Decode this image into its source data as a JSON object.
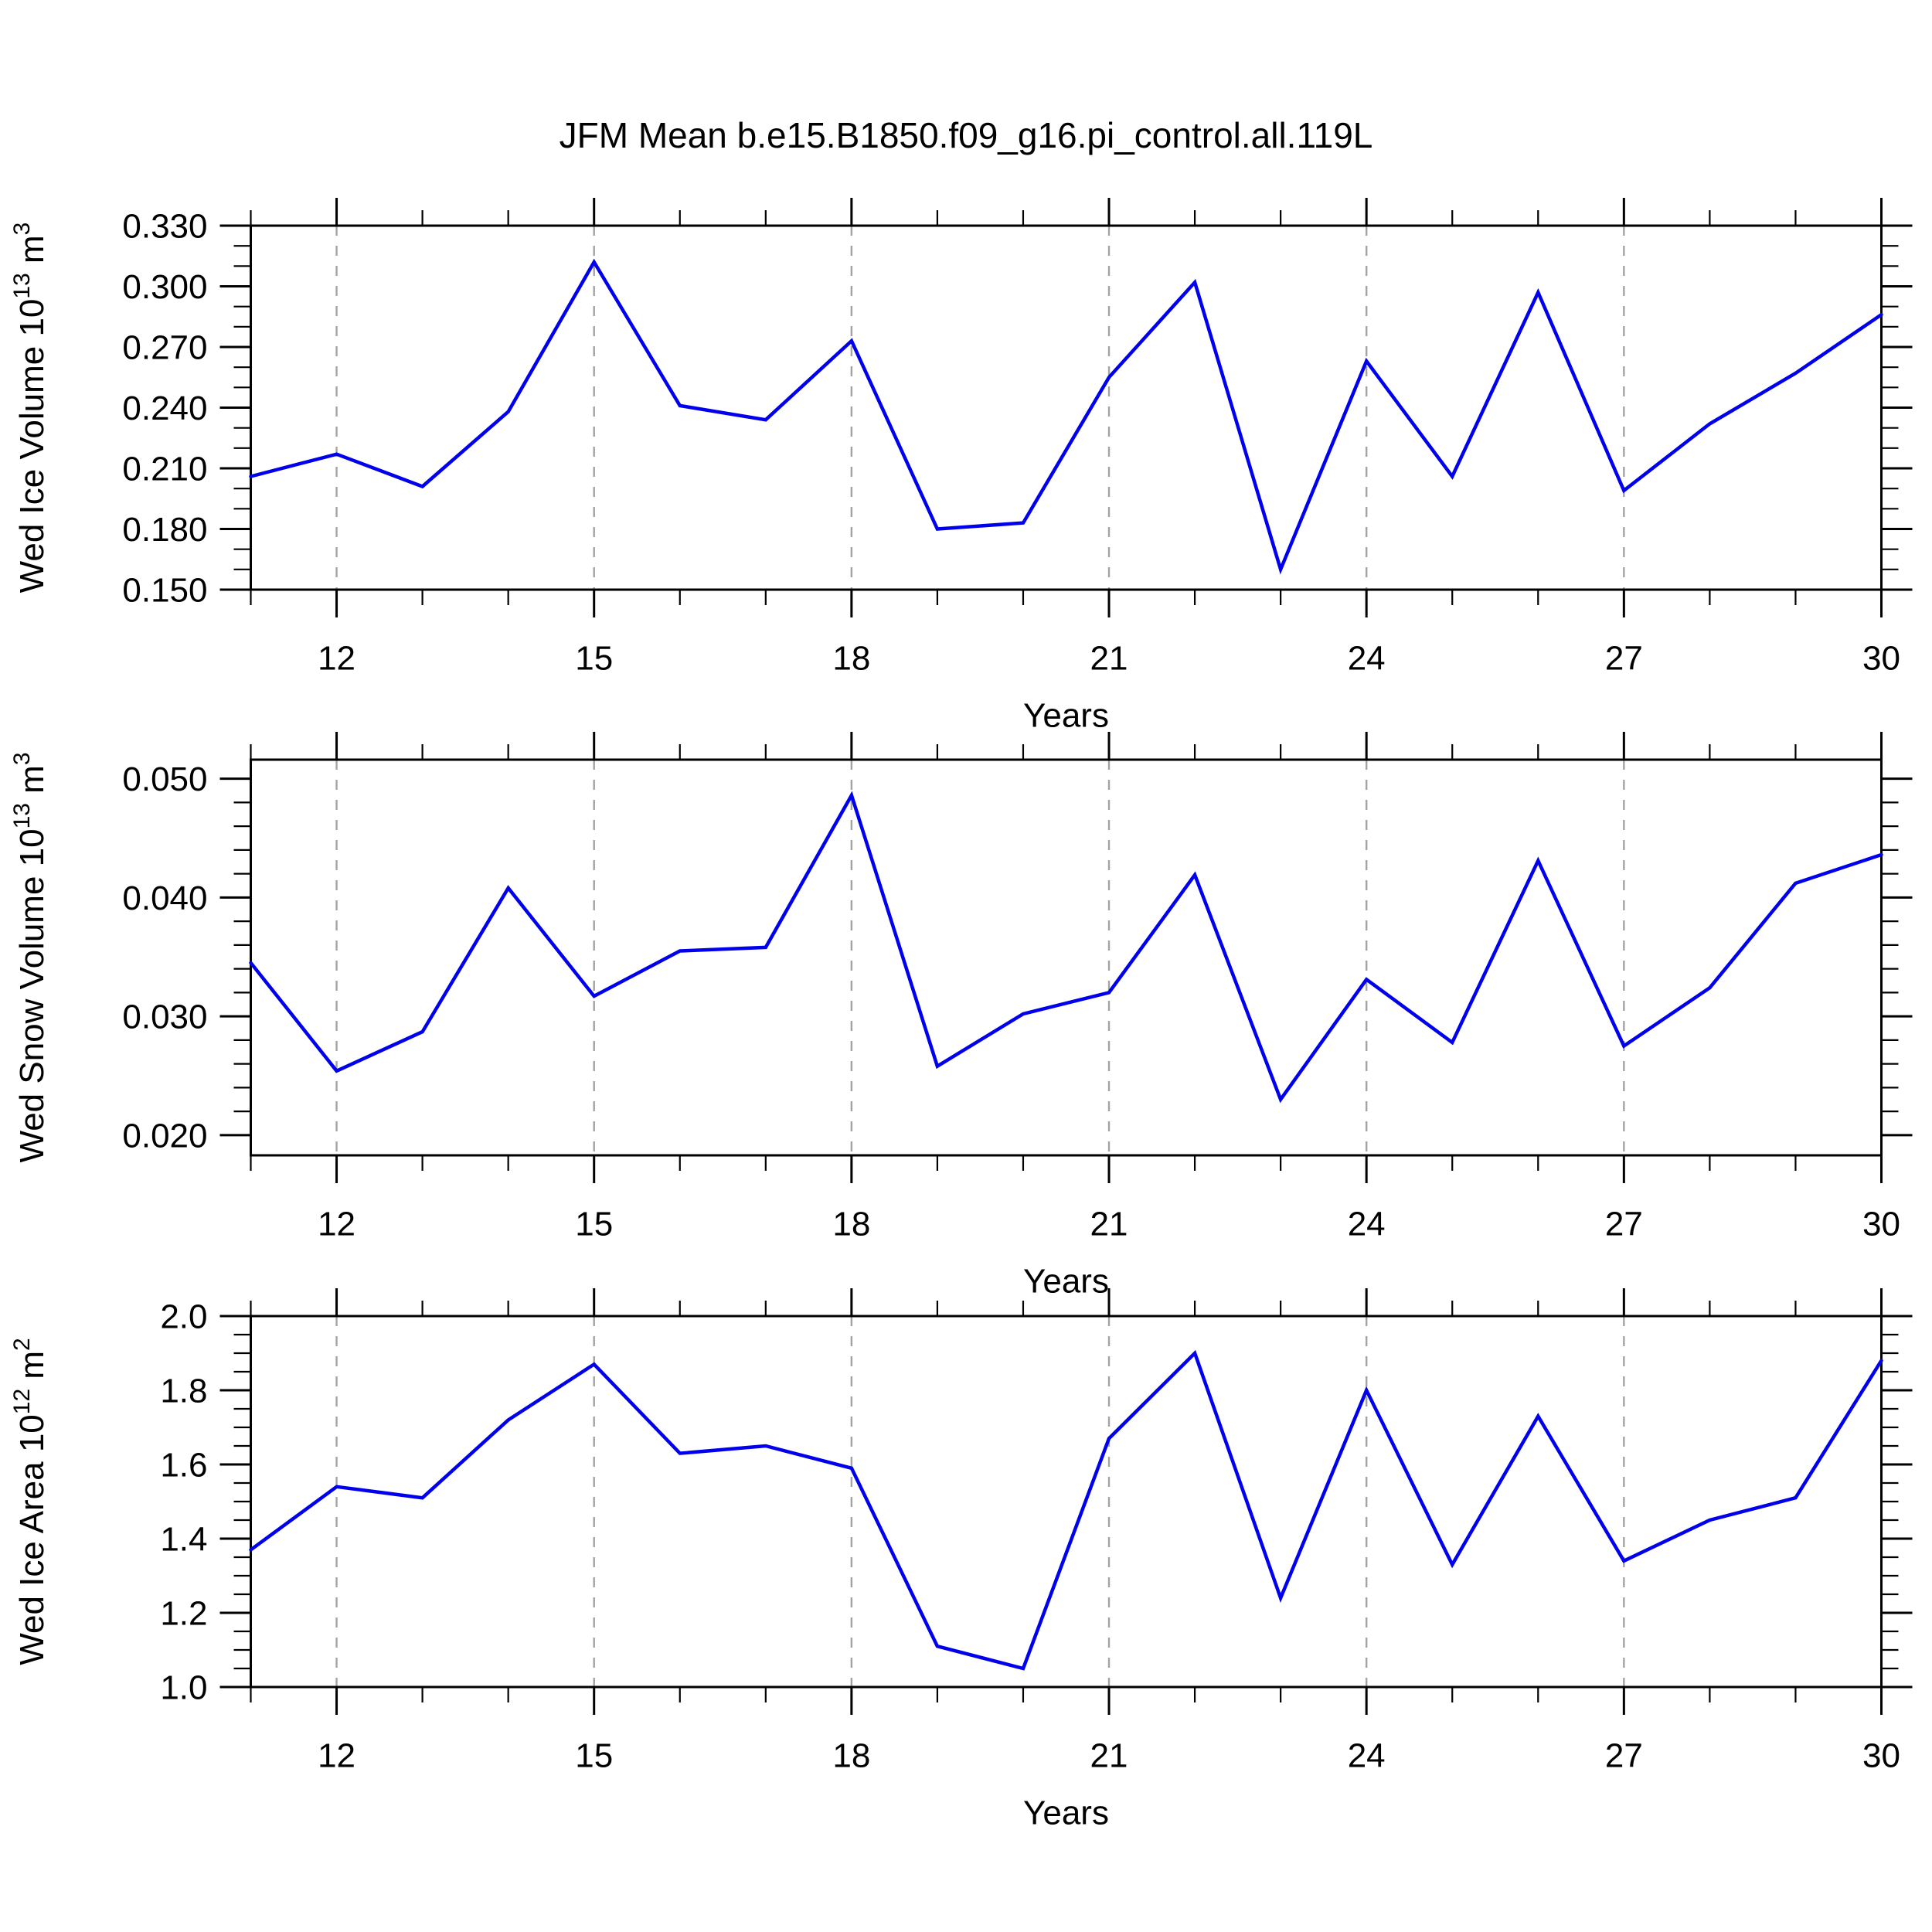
{
  "title": "JFM Mean b.e15.B1850.f09_g16.pi_control.all.119L",
  "colors": {
    "series": "#0000EE",
    "grid": "#A3A3A3",
    "axis": "#000000",
    "text": "#000000"
  },
  "chart_data": [
    {
      "type": "line",
      "ylabel": {
        "prefix": "Wed Ice Volume 10",
        "exponent": "13",
        "unit": " m",
        "unit_exponent": "3"
      },
      "xlabel": "Years",
      "x": [
        11,
        12,
        13,
        14,
        15,
        16,
        17,
        18,
        19,
        20,
        21,
        22,
        23,
        24,
        25,
        26,
        27,
        28,
        29,
        30
      ],
      "values": [
        0.206,
        0.217,
        0.201,
        0.238,
        0.312,
        0.241,
        0.234,
        0.273,
        0.18,
        0.183,
        0.255,
        0.302,
        0.16,
        0.263,
        0.206,
        0.297,
        0.199,
        0.232,
        0.257,
        0.286
      ],
      "xlim": [
        11,
        30
      ],
      "ylim": [
        0.15,
        0.33
      ],
      "yticks": [
        0.15,
        0.18,
        0.21,
        0.24,
        0.27,
        0.3,
        0.33
      ],
      "ytick_labels": [
        "0.150",
        "0.180",
        "0.210",
        "0.240",
        "0.270",
        "0.300",
        "0.330"
      ],
      "yminor_step": 0.01,
      "xticks": [
        12,
        15,
        18,
        21,
        24,
        27,
        30
      ],
      "xtick_labels": [
        "12",
        "15",
        "18",
        "21",
        "24",
        "27",
        "30"
      ],
      "xminor_step": 1,
      "grid": "vertical-dashed",
      "legend": null
    },
    {
      "type": "line",
      "ylabel": {
        "prefix": "Wed Snow Volume 10",
        "exponent": "13",
        "unit": " m",
        "unit_exponent": "3"
      },
      "xlabel": "Years",
      "x": [
        11,
        12,
        13,
        14,
        15,
        16,
        17,
        18,
        19,
        20,
        21,
        22,
        23,
        24,
        25,
        26,
        27,
        28,
        29,
        30
      ],
      "values": [
        0.0345,
        0.0254,
        0.0287,
        0.0408,
        0.0317,
        0.0355,
        0.0358,
        0.0486,
        0.0258,
        0.0302,
        0.032,
        0.0419,
        0.023,
        0.0331,
        0.0278,
        0.0431,
        0.0275,
        0.0324,
        0.0412,
        0.0436
      ],
      "xlim": [
        11,
        30
      ],
      "ylim": [
        0.0183,
        0.0516
      ],
      "yticks": [
        0.02,
        0.03,
        0.04,
        0.05
      ],
      "ytick_labels": [
        "0.020",
        "0.030",
        "0.040",
        "0.050"
      ],
      "yminor_step": 0.002,
      "xticks": [
        12,
        15,
        18,
        21,
        24,
        27,
        30
      ],
      "xtick_labels": [
        "12",
        "15",
        "18",
        "21",
        "24",
        "27",
        "30"
      ],
      "xminor_step": 1,
      "grid": "vertical-dashed",
      "legend": null
    },
    {
      "type": "line",
      "ylabel": {
        "prefix": "Wed Ice Area 10",
        "exponent": "12",
        "unit": " m",
        "unit_exponent": "2"
      },
      "xlabel": "Years",
      "x": [
        11,
        12,
        13,
        14,
        15,
        16,
        17,
        18,
        19,
        20,
        21,
        22,
        23,
        24,
        25,
        26,
        27,
        28,
        29,
        30
      ],
      "values": [
        1.37,
        1.54,
        1.51,
        1.72,
        1.87,
        1.63,
        1.65,
        1.59,
        1.11,
        1.05,
        1.67,
        1.9,
        1.24,
        1.8,
        1.33,
        1.73,
        1.34,
        1.45,
        1.51,
        1.88
      ],
      "xlim": [
        11,
        30
      ],
      "ylim": [
        1.0,
        2.0
      ],
      "yticks": [
        1.0,
        1.2,
        1.4,
        1.6,
        1.8,
        2.0
      ],
      "ytick_labels": [
        "1.0",
        "1.2",
        "1.4",
        "1.6",
        "1.8",
        "2.0"
      ],
      "yminor_step": 0.05,
      "xticks": [
        12,
        15,
        18,
        21,
        24,
        27,
        30
      ],
      "xtick_labels": [
        "12",
        "15",
        "18",
        "21",
        "24",
        "27",
        "30"
      ],
      "xminor_step": 1,
      "grid": "vertical-dashed",
      "legend": null
    }
  ]
}
